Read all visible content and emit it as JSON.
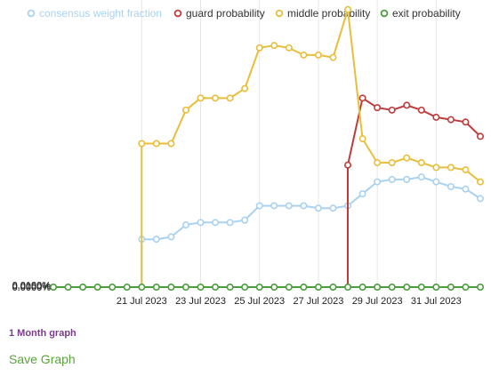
{
  "chart_data": {
    "type": "line",
    "x": [
      "2023-07-18 00:00",
      "2023-07-18 12:00",
      "2023-07-19 00:00",
      "2023-07-19 12:00",
      "2023-07-20 00:00",
      "2023-07-20 12:00",
      "2023-07-21 00:00",
      "2023-07-21 12:00",
      "2023-07-22 00:00",
      "2023-07-22 12:00",
      "2023-07-23 00:00",
      "2023-07-23 12:00",
      "2023-07-24 00:00",
      "2023-07-24 12:00",
      "2023-07-25 00:00",
      "2023-07-25 12:00",
      "2023-07-26 00:00",
      "2023-07-26 12:00",
      "2023-07-27 00:00",
      "2023-07-27 12:00",
      "2023-07-28 00:00",
      "2023-07-28 12:00",
      "2023-07-29 00:00",
      "2023-07-29 12:00",
      "2023-07-30 00:00",
      "2023-07-30 12:00",
      "2023-07-31 00:00",
      "2023-07-31 12:00",
      "2023-08-01 00:00",
      "2023-08-01 12:00"
    ],
    "series": [
      {
        "name": "consensus weight fraction",
        "values": [
          null,
          null,
          null,
          null,
          null,
          null,
          0.002,
          0.002,
          0.0021,
          0.0026,
          0.0027,
          0.0027,
          0.0027,
          0.0028,
          0.0034,
          0.0034,
          0.0034,
          0.0034,
          0.0033,
          0.0033,
          0.0034,
          0.0039,
          0.0044,
          0.0045,
          0.0045,
          0.0046,
          0.0044,
          0.0042,
          0.0041,
          0.0037
        ]
      },
      {
        "name": "guard probability",
        "values": [
          null,
          null,
          null,
          null,
          null,
          null,
          null,
          null,
          null,
          null,
          null,
          null,
          null,
          null,
          null,
          null,
          null,
          null,
          null,
          null,
          0.0051,
          0.0079,
          0.0075,
          0.0074,
          0.0076,
          0.0074,
          0.0071,
          0.007,
          0.0069,
          0.0063
        ]
      },
      {
        "name": "middle probability",
        "values": [
          null,
          null,
          null,
          null,
          null,
          null,
          0.006,
          0.006,
          0.006,
          0.0074,
          0.0079,
          0.0079,
          0.0079,
          0.0083,
          0.01,
          0.0101,
          0.01,
          0.0097,
          0.0097,
          0.0096,
          0.0116,
          0.0062,
          0.0052,
          0.0052,
          0.0054,
          0.0052,
          0.005,
          0.005,
          0.0049,
          0.0044
        ]
      },
      {
        "name": "exit probability",
        "values": [
          0,
          0,
          0,
          0,
          0,
          0,
          0,
          0,
          0,
          0,
          0,
          0,
          0,
          0,
          0,
          0,
          0,
          0,
          0,
          0,
          0,
          0,
          0,
          0,
          0,
          0,
          0,
          0,
          0,
          0
        ]
      }
    ],
    "x_ticks": [
      "21 Jul 2023",
      "23 Jul 2023",
      "25 Jul 2023",
      "27 Jul 2023",
      "29 Jul 2023",
      "31 Jul 2023"
    ],
    "y_ticks": [
      "0.0000%",
      "0.0050%",
      "0.0100%"
    ],
    "ylim": [
      0,
      0.012
    ],
    "grid": "vertical",
    "legend_position": "top",
    "colors": {
      "consensus weight fraction": "#a8d2f0",
      "guard probability": "#bf3c3c",
      "middle probability": "#e8be3a",
      "exit probability": "#4a9e3b"
    }
  },
  "footer": {
    "graph_title": "1 Month graph",
    "save_label": "Save Graph"
  }
}
